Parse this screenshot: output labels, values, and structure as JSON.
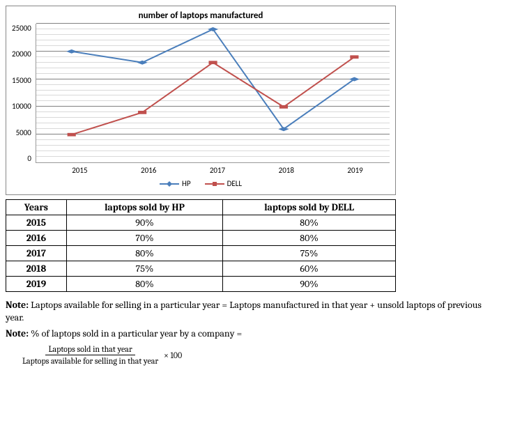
{
  "chart": {
    "type": "line",
    "title": "number of laptops manufactured",
    "title_fontsize": 13,
    "background_color": "#ffffff",
    "border_color": "#888888",
    "grid_major_color": "#808080",
    "grid_minor_color": "#d9d9d9",
    "ylim": [
      0,
      25000
    ],
    "ytick_step": 5000,
    "minor_step": 1000,
    "yticks": [
      "0",
      "5000",
      "10000",
      "15000",
      "20000",
      "25000"
    ],
    "categories": [
      "2015",
      "2016",
      "2017",
      "2018",
      "2019"
    ],
    "series": [
      {
        "name": "HP",
        "color": "#4a7ebb",
        "marker": "diamond",
        "line_width": 2,
        "values": [
          20000,
          18000,
          24000,
          6000,
          15000
        ]
      },
      {
        "name": "DELL",
        "color": "#c0504d",
        "marker": "square",
        "line_width": 2,
        "values": [
          5000,
          9000,
          18000,
          10000,
          19000
        ]
      }
    ],
    "label_fontsize": 11,
    "font_family": "Calibri"
  },
  "table": {
    "columns": [
      "Years",
      "laptops sold by HP",
      "laptops sold by DELL"
    ],
    "rows": [
      [
        "2015",
        "90%",
        "80%"
      ],
      [
        "2016",
        "70%",
        "80%"
      ],
      [
        "2017",
        "80%",
        "75%"
      ],
      [
        "2018",
        "75%",
        "60%"
      ],
      [
        "2019",
        "80%",
        "90%"
      ]
    ],
    "border_color": "#000000",
    "header_fontweight": "bold",
    "cell_fontsize": 14
  },
  "notes": {
    "note1_label": "Note:",
    "note1_text": " Laptops available for selling in a particular year = Laptops manufactured in that year + unsold laptops of previous year.",
    "note2_label": "Note:",
    "note2_text": " % of laptops sold in a particular year by a company =",
    "formula_num": "Laptops sold in that year",
    "formula_den": "Laptops available for selling in that year",
    "formula_tail": " × 100"
  }
}
